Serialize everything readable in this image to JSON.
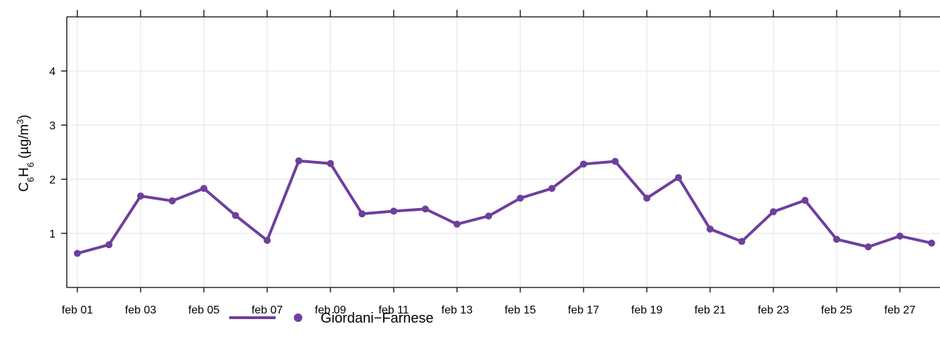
{
  "chart_data": {
    "type": "line",
    "title": "",
    "xlabel": "",
    "ylabel": {
      "main": "C",
      "sub1": "6",
      "mid": "H",
      "sub2": "6",
      "unit_open": " (µg/m",
      "sup": "3",
      "unit_close": ")"
    },
    "x_days": [
      1,
      2,
      3,
      4,
      5,
      6,
      7,
      8,
      9,
      10,
      11,
      12,
      13,
      14,
      15,
      16,
      17,
      18,
      19,
      20,
      21,
      22,
      23,
      24,
      25,
      26,
      27,
      28
    ],
    "x_tick_days": [
      1,
      3,
      5,
      7,
      9,
      11,
      13,
      15,
      17,
      19,
      21,
      23,
      25,
      27
    ],
    "x_tick_labels": [
      "feb 01",
      "feb 03",
      "feb 05",
      "feb 07",
      "feb 09",
      "feb 11",
      "feb 13",
      "feb 15",
      "feb 17",
      "feb 19",
      "feb 21",
      "feb 23",
      "feb 25",
      "feb 27"
    ],
    "y_ticks": [
      1,
      2,
      3,
      4
    ],
    "ylim": [
      0,
      5
    ],
    "grid": true,
    "legend_position": "bottom",
    "series": [
      {
        "name": "Giordani−Farnese",
        "color": "#6e3f9e",
        "values": [
          0.63,
          0.79,
          1.69,
          1.6,
          1.83,
          1.33,
          0.87,
          2.34,
          2.29,
          1.36,
          1.41,
          1.45,
          1.17,
          1.32,
          1.65,
          1.83,
          2.28,
          2.33,
          1.65,
          2.03,
          1.08,
          0.85,
          1.4,
          1.61,
          0.89,
          0.75,
          0.95,
          0.82
        ]
      }
    ]
  }
}
